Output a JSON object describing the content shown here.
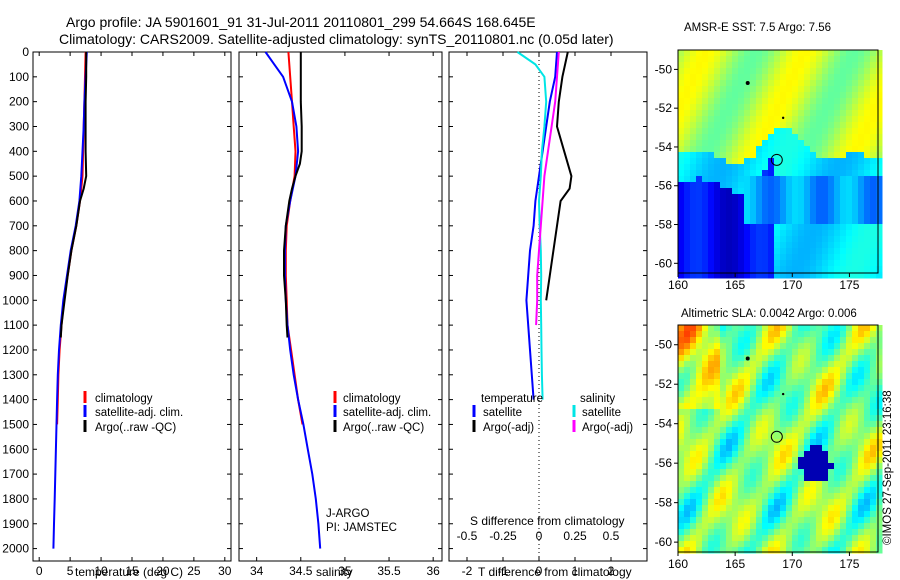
{
  "header": {
    "line1": "Argo profile: JA 5901601_91 31-Jul-2011 20110801_299 54.664S 168.645E",
    "line2": "Climatology: CARS2009. Satellite-adjusted climatology: synTS_20110801.nc (0.05d later)"
  },
  "credit": "©IMOS 27-Sep-2011 23:16:38",
  "depth_ticks": [
    "0",
    "100",
    "200",
    "300",
    "400",
    "500",
    "600",
    "700",
    "800",
    "900",
    "1000",
    "1100",
    "1200",
    "1300",
    "1400",
    "1500",
    "1600",
    "1700",
    "1800",
    "1900",
    "2000"
  ],
  "colors": {
    "climatology": "#ff0000",
    "satellite": "#0000ff",
    "argo": "#000000",
    "sat_salinity": "#00e5e5",
    "argo_adj_salinity": "#ff00ff"
  },
  "chart_data": [
    {
      "type": "line",
      "xlabel": "temperature (deg C)",
      "ylabel": "",
      "xlim": [
        -1,
        31
      ],
      "ylim": [
        2050,
        0
      ],
      "xticks": [
        0,
        5,
        10,
        15,
        20,
        25,
        30
      ],
      "legend": [
        "climatology",
        "satellite-adj. clim.",
        "Argo(..raw -QC)"
      ],
      "series": [
        {
          "name": "climatology",
          "depth": [
            0,
            100,
            200,
            300,
            400,
            500,
            600,
            700,
            800,
            900,
            1000,
            1100,
            1200,
            1300,
            1400,
            1500
          ],
          "values": [
            7.5,
            7.4,
            7.3,
            7.2,
            7.1,
            7.0,
            6.6,
            6.0,
            5.2,
            4.6,
            4.0,
            3.6,
            3.3,
            3.1,
            3.0,
            2.9
          ]
        },
        {
          "name": "satellite-adj. clim.",
          "depth": [
            0,
            100,
            200,
            300,
            400,
            500,
            600,
            700,
            800,
            900,
            1000,
            1100,
            1200,
            1300,
            1400,
            1500,
            1600,
            1700,
            1800,
            1900,
            2000
          ],
          "values": [
            7.7,
            7.5,
            7.3,
            7.2,
            7.0,
            6.8,
            6.5,
            5.9,
            5.1,
            4.5,
            3.9,
            3.5,
            3.2,
            3.0,
            2.9,
            2.8,
            2.7,
            2.6,
            2.5,
            2.4,
            2.3
          ]
        },
        {
          "name": "Argo(..raw -QC)",
          "depth": [
            0,
            100,
            200,
            300,
            400,
            500,
            550,
            600,
            700,
            800,
            900,
            1000,
            1100,
            1150
          ],
          "values": [
            7.6,
            7.6,
            7.5,
            7.5,
            7.5,
            7.6,
            7.2,
            6.6,
            6.0,
            5.2,
            4.6,
            4.1,
            3.6,
            3.5
          ]
        }
      ]
    },
    {
      "type": "line",
      "xlabel": "salinity",
      "xlim": [
        33.8,
        36.1
      ],
      "ylim": [
        2050,
        0
      ],
      "xticks": [
        34,
        34.5,
        35,
        35.5,
        36
      ],
      "legend": [
        "climatology",
        "satellite-adj. clim.",
        "Argo(..raw -QC)"
      ],
      "annotation": [
        "J-ARGO",
        "PI: JAMSTEC"
      ],
      "series": [
        {
          "name": "climatology",
          "depth": [
            0,
            100,
            200,
            300,
            400,
            500,
            600,
            700,
            800,
            900,
            1000,
            1100,
            1200,
            1300,
            1400,
            1500
          ],
          "values": [
            34.36,
            34.38,
            34.4,
            34.42,
            34.44,
            34.43,
            34.38,
            34.34,
            34.33,
            34.33,
            34.34,
            34.35,
            34.39,
            34.43,
            34.47,
            34.52
          ]
        },
        {
          "name": "satellite-adj. clim.",
          "depth": [
            0,
            50,
            100,
            200,
            300,
            400,
            500,
            600,
            700,
            800,
            900,
            1000,
            1100,
            1200,
            1300,
            1400,
            1500,
            1600,
            1700,
            1800,
            1900,
            2000
          ],
          "values": [
            34.1,
            34.2,
            34.3,
            34.4,
            34.45,
            34.47,
            34.44,
            34.38,
            34.33,
            34.32,
            34.32,
            34.33,
            34.35,
            34.38,
            34.42,
            34.47,
            34.53,
            34.58,
            34.63,
            34.67,
            34.7,
            34.72
          ]
        },
        {
          "name": "Argo(..raw -QC)",
          "depth": [
            0,
            100,
            200,
            300,
            400,
            450,
            500,
            550,
            600,
            700,
            800,
            900,
            1000,
            1100,
            1150
          ],
          "values": [
            34.5,
            34.5,
            34.5,
            34.51,
            34.51,
            34.49,
            34.44,
            34.4,
            34.37,
            34.33,
            34.31,
            34.31,
            34.33,
            34.34,
            34.35
          ]
        }
      ]
    },
    {
      "type": "line",
      "xlabel": "T difference from climatology",
      "xlabel2": "S difference from climatology",
      "xlim": [
        -2.5,
        3.0
      ],
      "ylim": [
        2050,
        0
      ],
      "xticks": [
        -2,
        -1,
        0,
        1,
        2
      ],
      "xticks2": [
        {
          "label": "-0.5",
          "x": -2.0
        },
        {
          "label": "-0.25",
          "x": -1.0
        },
        {
          "label": "0",
          "x": 0.0
        },
        {
          "label": "0.25",
          "x": 1.0
        },
        {
          "label": "0.5",
          "x": 2.0
        }
      ],
      "legend_titles": [
        "temperature",
        "salinity"
      ],
      "legend": [
        "satellite",
        "Argo(-adj)",
        "satellite",
        "Argo(-adj)"
      ],
      "series": [
        {
          "name": "temperature satellite",
          "depth": [
            0,
            100,
            200,
            300,
            400,
            500,
            600,
            700,
            800,
            900,
            1000,
            1100,
            1200,
            1300,
            1400
          ],
          "values": [
            0.5,
            0.45,
            0.3,
            0.2,
            0.1,
            0.0,
            -0.1,
            -0.15,
            -0.25,
            -0.3,
            -0.35,
            -0.3,
            -0.25,
            -0.2,
            -0.15
          ]
        },
        {
          "name": "temperature Argo(-adj)",
          "depth": [
            0,
            100,
            200,
            300,
            400,
            500,
            550,
            600,
            700,
            800,
            900,
            1000
          ],
          "values": [
            0.8,
            0.65,
            0.55,
            0.5,
            0.7,
            0.9,
            0.85,
            0.6,
            0.5,
            0.4,
            0.3,
            0.2
          ]
        },
        {
          "name": "salinity satellite",
          "depth": [
            0,
            50,
            100,
            200,
            300,
            400,
            500,
            600,
            700,
            800,
            900,
            1000,
            1100,
            1200,
            1300,
            1400
          ],
          "values": [
            -0.6,
            -0.1,
            0.15,
            0.2,
            0.15,
            0.08,
            0.05,
            0.0,
            0.02,
            0.05,
            0.06,
            0.05,
            0.06,
            0.07,
            0.08,
            0.1
          ]
        },
        {
          "name": "salinity Argo(-adj)",
          "depth": [
            0,
            100,
            200,
            300,
            400,
            500,
            600,
            700,
            800,
            900,
            1000,
            1100
          ],
          "values": [
            0.55,
            0.5,
            0.45,
            0.35,
            0.25,
            0.15,
            0.1,
            0.05,
            0.0,
            -0.05,
            -0.05,
            -0.08
          ]
        }
      ]
    },
    {
      "type": "heatmap",
      "title": "AMSR-E SST: 7.5 Argo: 7.56",
      "xlim": [
        160,
        177.5
      ],
      "ylim": [
        -60.5,
        -49
      ],
      "xticks": [
        160,
        165,
        170,
        175
      ],
      "yticks": [
        -50,
        -52,
        -54,
        -56,
        -58,
        -60
      ],
      "marker": {
        "lon": 168.645,
        "lat": -54.664
      }
    },
    {
      "type": "heatmap",
      "title": "Altimetric SLA: 0.0042 Argo: 0.006",
      "xlim": [
        160,
        177.5
      ],
      "ylim": [
        -60.5,
        -49
      ],
      "xticks": [
        160,
        165,
        170,
        175
      ],
      "yticks": [
        -50,
        -52,
        -54,
        -56,
        -58,
        -60
      ],
      "marker": {
        "lon": 168.645,
        "lat": -54.664
      }
    }
  ]
}
